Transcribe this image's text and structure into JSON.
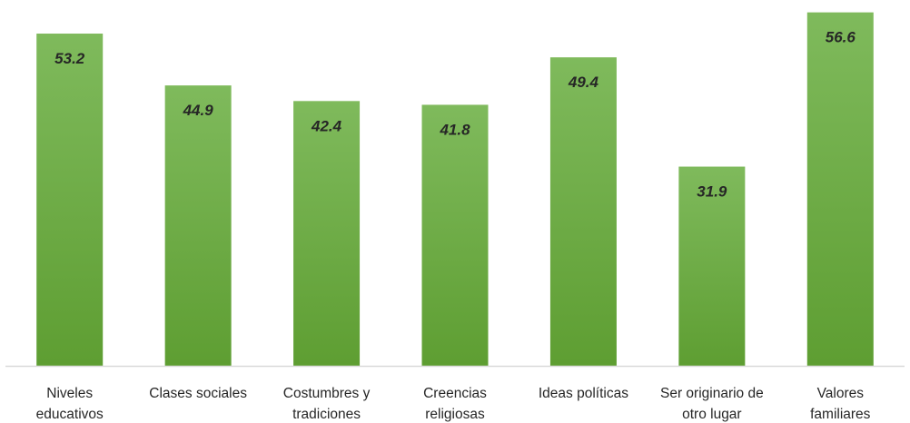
{
  "chart_data": {
    "type": "bar",
    "title": "",
    "xlabel": "",
    "ylabel": "",
    "ylim": [
      0,
      58
    ],
    "grid": false,
    "legend": "none",
    "categories": [
      [
        "Niveles",
        "educativos"
      ],
      [
        "Clases sociales"
      ],
      [
        "Costumbres y",
        "tradiciones"
      ],
      [
        "Creencias",
        "religiosas"
      ],
      [
        "Ideas políticas"
      ],
      [
        "Ser originario de",
        "otro lugar"
      ],
      [
        "Valores",
        "familiares"
      ]
    ],
    "series": [
      {
        "values": [
          53.2,
          44.9,
          42.4,
          41.8,
          49.4,
          31.9,
          56.6
        ],
        "color": "#6aa84f"
      }
    ],
    "data_labels": [
      "53.2",
      "44.9",
      "42.4",
      "41.8",
      "49.4",
      "31.9",
      "56.6"
    ]
  },
  "colors": {
    "bar_top": "#7fba5c",
    "bar_bottom": "#5e9e32",
    "axis": "#d9d9d9",
    "text": "#262626"
  }
}
